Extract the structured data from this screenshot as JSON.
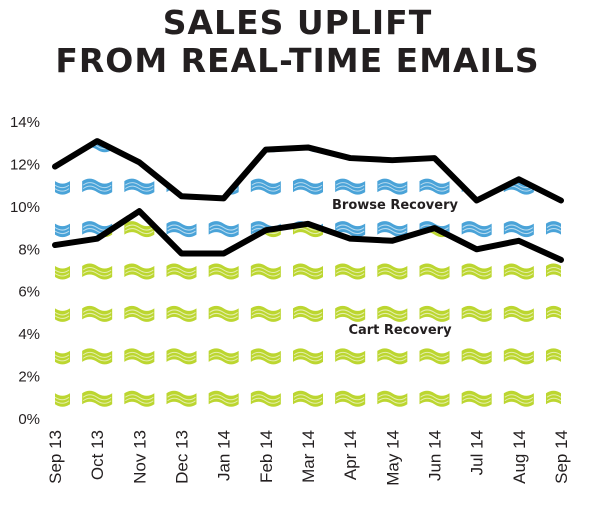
{
  "chart_data": {
    "type": "area",
    "title_lines": [
      "SALES UPLIFT",
      "FROM REAL-TIME EMAILS"
    ],
    "categories": [
      "Sep 13",
      "Oct 13",
      "Nov 13",
      "Dec 13",
      "Jan 14",
      "Feb 14",
      "Mar 14",
      "Apr 14",
      "May 14",
      "Jun 14",
      "Jul 14",
      "Aug 14",
      "Sep 14"
    ],
    "y_ticks": [
      "0%",
      "2%",
      "4%",
      "6%",
      "8%",
      "10%",
      "12%",
      "14%"
    ],
    "ylim": [
      0,
      14
    ],
    "grid": false,
    "series": [
      {
        "name": "Browse Recovery",
        "values": [
          11.9,
          13.1,
          12.1,
          10.5,
          10.4,
          12.7,
          12.8,
          12.3,
          12.2,
          12.3,
          10.3,
          11.3,
          10.3
        ],
        "color": "#4aa3d8"
      },
      {
        "name": "Cart Recovery",
        "values": [
          8.2,
          8.5,
          9.8,
          7.8,
          7.8,
          8.9,
          9.2,
          8.5,
          8.4,
          9.0,
          8.0,
          8.4,
          7.5
        ],
        "color": "#bcd630"
      }
    ]
  },
  "colors": {
    "line": "#000000",
    "text": "#231f20",
    "browse_fill": "#4aa3d8",
    "cart_fill": "#bcd630"
  }
}
